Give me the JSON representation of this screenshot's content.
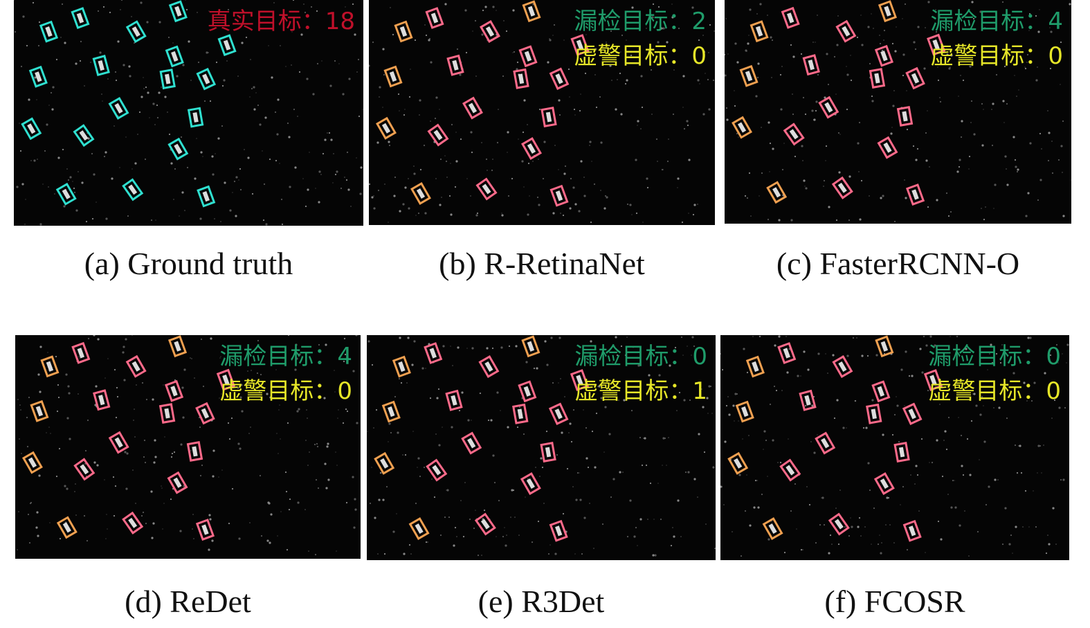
{
  "panels": [
    {
      "caption": "(a) Ground truth",
      "overlay": [
        "真实目标：18"
      ]
    },
    {
      "caption": "(b) R-RetinaNet",
      "overlay": [
        "漏检目标：2",
        "虚警目标：0"
      ]
    },
    {
      "caption": "(c) FasterRCNN-O",
      "overlay": [
        "漏检目标：4",
        "虚警目标：0"
      ]
    },
    {
      "caption": "(d) ReDet",
      "overlay": [
        "漏检目标：4",
        "虚警目标：0"
      ]
    },
    {
      "caption": "(e) R3Det",
      "overlay": [
        "漏检目标：0",
        "虚警目标：1"
      ]
    },
    {
      "caption": "(f) FCOSR",
      "overlay": [
        "漏检目标：0",
        "虚警目标：0"
      ]
    }
  ]
}
